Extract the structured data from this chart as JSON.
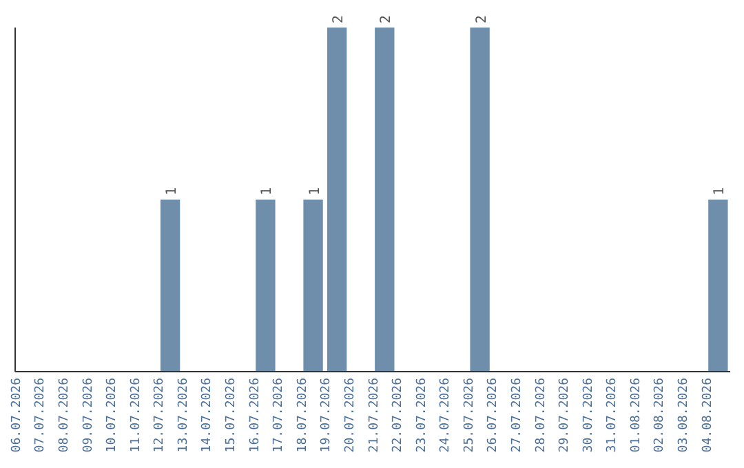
{
  "chart_data": {
    "type": "bar",
    "categories": [
      "06.07.2026",
      "07.07.2026",
      "08.07.2026",
      "09.07.2026",
      "10.07.2026",
      "11.07.2026",
      "12.07.2026",
      "13.07.2026",
      "14.07.2026",
      "15.07.2026",
      "16.07.2026",
      "17.07.2026",
      "18.07.2026",
      "19.07.2026",
      "20.07.2026",
      "21.07.2026",
      "22.07.2026",
      "23.07.2026",
      "24.07.2026",
      "25.07.2026",
      "26.07.2026",
      "27.07.2026",
      "28.07.2026",
      "29.07.2026",
      "30.07.2026",
      "31.07.2026",
      "01.08.2026",
      "02.08.2026",
      "03.08.2026",
      "04.08.2026"
    ],
    "values": [
      0,
      0,
      0,
      0,
      0,
      0,
      1,
      0,
      0,
      0,
      1,
      0,
      1,
      2,
      0,
      2,
      0,
      0,
      0,
      2,
      0,
      0,
      0,
      0,
      0,
      0,
      0,
      0,
      0,
      1
    ],
    "value_labels": [
      null,
      null,
      null,
      null,
      null,
      null,
      "1",
      null,
      null,
      null,
      "1",
      null,
      "1",
      "2",
      null,
      "2",
      null,
      null,
      null,
      "2",
      null,
      null,
      null,
      null,
      null,
      null,
      null,
      null,
      null,
      "1"
    ],
    "color": "#6e8eab",
    "ylim": [
      0,
      2
    ],
    "tick_labels": "x"
  }
}
